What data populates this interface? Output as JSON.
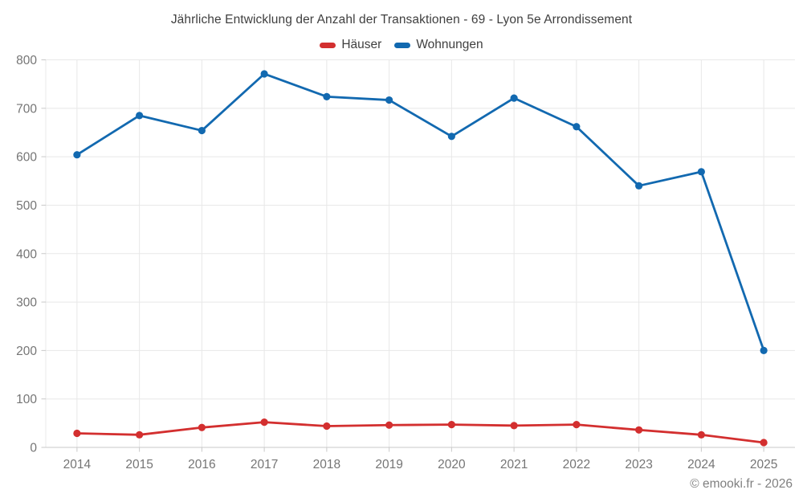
{
  "page": {
    "footer": "© emooki.fr - 2026"
  },
  "colors": {
    "hauser_red": "#d32f2f",
    "wohnungen_blue": "#1269b0",
    "grid": "#e8e8e8",
    "axis_line": "#c9c9c9",
    "tick_label": "#757575",
    "title_text": "#3f3f3f"
  },
  "chart_data": {
    "type": "line",
    "title": "Jährliche Entwicklung der Anzahl der Transaktionen - 69 - Lyon 5e Arrondissement",
    "categories": [
      "2014",
      "2015",
      "2016",
      "2017",
      "2018",
      "2019",
      "2020",
      "2021",
      "2022",
      "2023",
      "2024",
      "2025"
    ],
    "series": [
      {
        "name": "Häuser",
        "color": "#d32f2f",
        "values": [
          29,
          26,
          41,
          52,
          44,
          46,
          47,
          45,
          47,
          36,
          26,
          10
        ]
      },
      {
        "name": "Wohnungen",
        "color": "#1269b0",
        "values": [
          604,
          685,
          654,
          771,
          724,
          717,
          642,
          721,
          662,
          540,
          569,
          200
        ]
      }
    ],
    "xlabel": "",
    "ylabel": "",
    "ylim": [
      0,
      800
    ],
    "ytick_step": 100,
    "grid": true,
    "legend_position": "top-center",
    "marker": "circle"
  }
}
